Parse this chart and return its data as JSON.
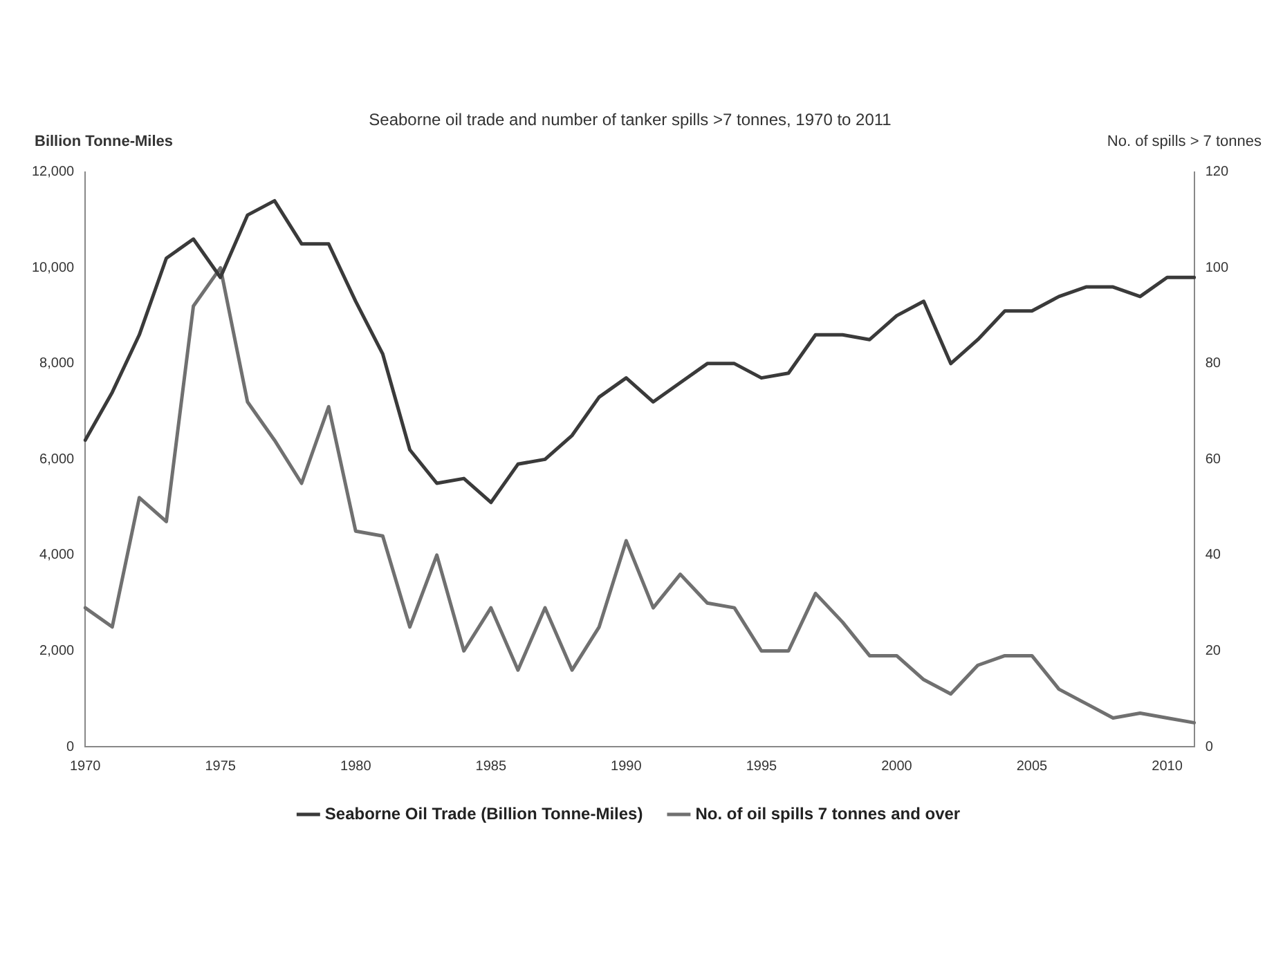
{
  "chart_data": {
    "type": "line",
    "title": "Seaborne oil trade and number of tanker spills >7 tonnes, 1970 to 2011",
    "ylabel": "Billion Tonne-Miles",
    "y2label": "No. of spills > 7 tonnes",
    "categories": [
      "1970",
      null,
      null,
      null,
      null,
      "1975",
      null,
      null,
      null,
      null,
      "1980",
      null,
      null,
      null,
      null,
      "1985",
      null,
      null,
      null,
      null,
      "1990",
      null,
      null,
      null,
      null,
      "1995",
      null,
      null,
      null,
      null,
      "2000",
      null,
      null,
      null,
      null,
      "2005",
      null,
      null,
      null,
      null,
      "2010",
      null
    ],
    "series": [
      {
        "name": "Seaborne Oil Trade (Billion Tonne-Miles)",
        "color": "#3a3a3a",
        "values": [
          6400,
          7400,
          8600,
          10200,
          10600,
          9800,
          11100,
          11400,
          10500,
          10500,
          9300,
          8200,
          6200,
          5500,
          5600,
          5100,
          5900,
          6000,
          6500,
          7300,
          7700,
          7200,
          7600,
          8000,
          8000,
          7700,
          7800,
          8600,
          8600,
          8500,
          9000,
          9300,
          8000,
          8500,
          9100,
          9100,
          9400,
          9600,
          9600,
          9400,
          9800,
          9800
        ]
      },
      {
        "name": "No. of oil spills 7 tonnes and over",
        "color": "#707070",
        "axis": "y2",
        "values": [
          29,
          25,
          52,
          47,
          92,
          100,
          72,
          64,
          55,
          71,
          45,
          44,
          25,
          40,
          20,
          29,
          16,
          29,
          16,
          25,
          43,
          29,
          36,
          30,
          29,
          20,
          20,
          32,
          26,
          19,
          19,
          14,
          11,
          17,
          19,
          19,
          12,
          9,
          6,
          7,
          6,
          5
        ]
      }
    ],
    "ylim": [
      0,
      12000
    ],
    "yticks": [
      {
        "value": 0,
        "label": "0"
      },
      {
        "value": 2000,
        "label": "2,000"
      },
      {
        "value": 4000,
        "label": "4,000"
      },
      {
        "value": 6000,
        "label": "6,000"
      },
      {
        "value": 8000,
        "label": "8,000"
      },
      {
        "value": 10000,
        "label": "10,000"
      },
      {
        "value": 12000,
        "label": "12,000"
      }
    ],
    "y2lim": [
      0,
      120
    ],
    "y2ticks": [
      0,
      20,
      40,
      60,
      80,
      100,
      120
    ],
    "grid": false,
    "legend": "bottom",
    "marker": "none",
    "line_style": "solid"
  }
}
